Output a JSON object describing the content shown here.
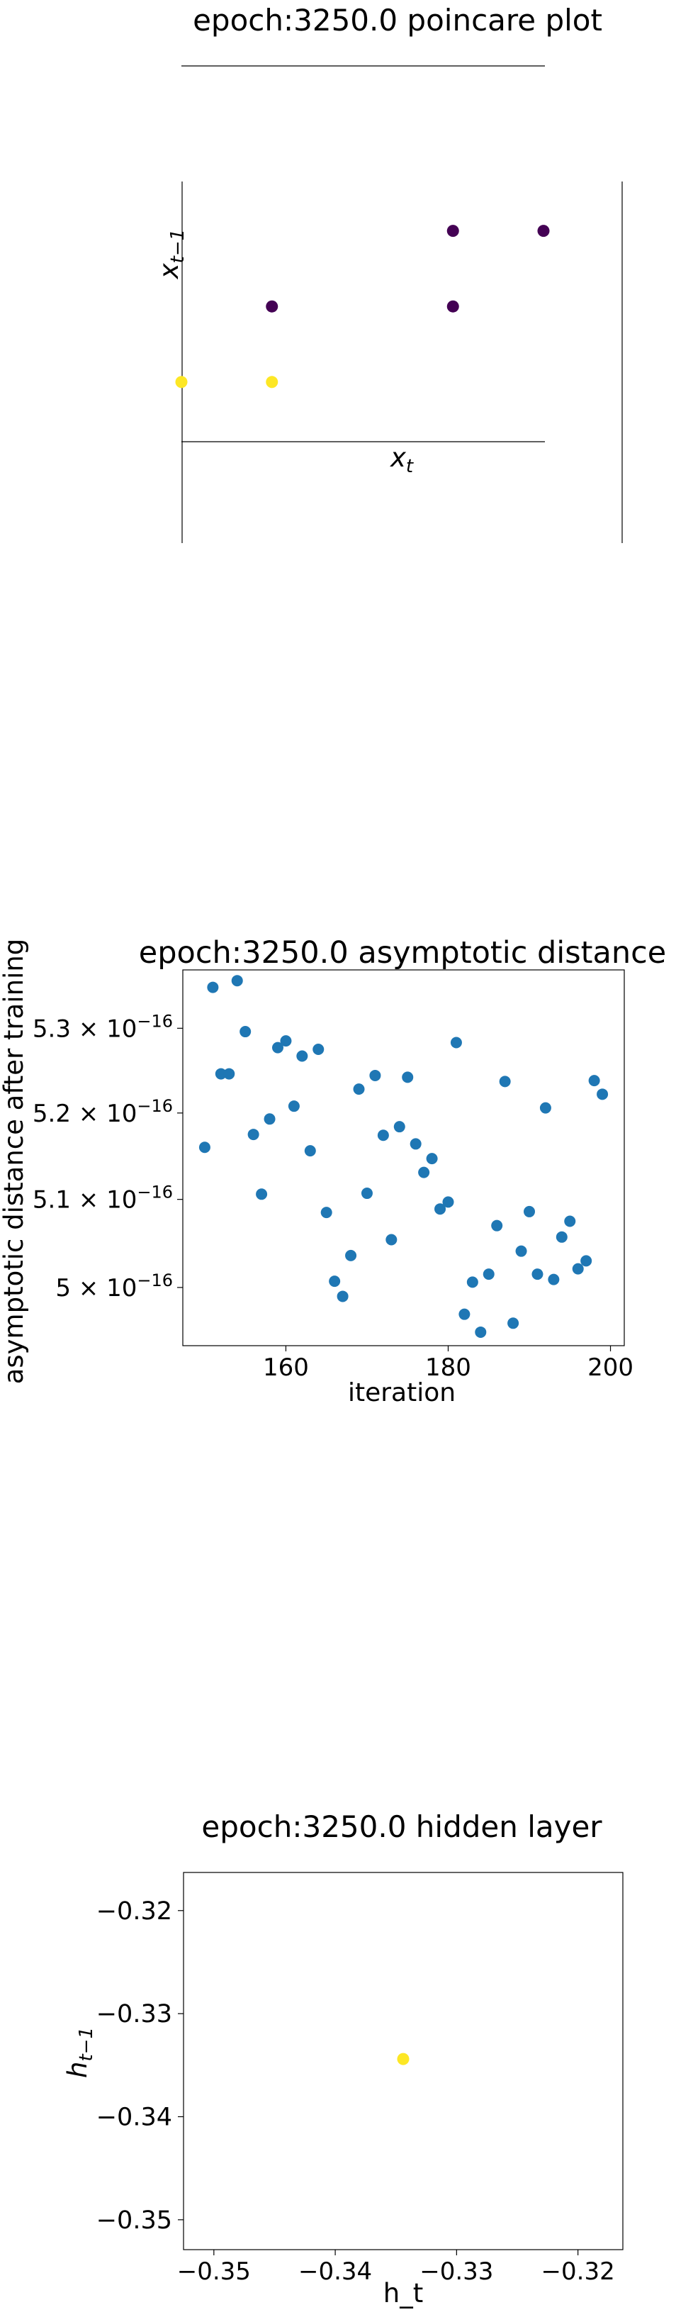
{
  "chart_data": [
    {
      "type": "scatter",
      "title": "epoch:3250.0 poincare plot",
      "xlabel": "x_t",
      "ylabel": "x_{t−1}",
      "spines": "centered",
      "grid": false,
      "points": [
        {
          "x": 0.5,
          "y": 0.5,
          "color": "#440154"
        },
        {
          "x": 1.0,
          "y": 0.5,
          "color": "#440154"
        },
        {
          "x": -0.5,
          "y": 0.0,
          "color": "#440154"
        },
        {
          "x": 0.5,
          "y": 0.0,
          "color": "#440154"
        },
        {
          "x": -1.0,
          "y": -0.5,
          "color": "#fde725"
        },
        {
          "x": -0.5,
          "y": -0.5,
          "color": "#fde725"
        }
      ],
      "xlim": [
        -1.0,
        1.0
      ],
      "ylim": [
        -1.5,
        1.0
      ]
    },
    {
      "type": "scatter",
      "title": "epoch:3250.0 asymptotic distance",
      "xlabel": "iteration",
      "ylabel": "asymptotic distance after training",
      "grid": false,
      "log_y": true,
      "xlim": [
        147.3,
        201.7
      ],
      "ylim": [
        4.935e-16,
        5.37e-16
      ],
      "xticks": [
        160,
        180,
        200
      ],
      "xtick_labels": [
        "160",
        "180",
        "200"
      ],
      "yticks": [
        5e-16,
        5.1e-16,
        5.2e-16,
        5.3e-16
      ],
      "ytick_labels": [
        {
          "mant": "5",
          "exp": "−16"
        },
        {
          "mant": "5.1",
          "exp": "−16"
        },
        {
          "mant": "5.2",
          "exp": "−16"
        },
        {
          "mant": "5.3",
          "exp": "−16"
        }
      ],
      "color": "#1f77b4",
      "x": [
        150,
        151,
        152,
        153,
        154,
        155,
        156,
        157,
        158,
        159,
        160,
        161,
        162,
        163,
        164,
        165,
        166,
        167,
        168,
        169,
        170,
        171,
        172,
        173,
        174,
        175,
        176,
        177,
        178,
        179,
        180,
        181,
        182,
        183,
        184,
        185,
        186,
        187,
        188,
        189,
        190,
        191,
        192,
        193,
        194,
        195,
        196,
        197,
        198,
        199
      ],
      "y": [
        5.16e-16,
        5.349e-16,
        5.246e-16,
        5.246e-16,
        5.357e-16,
        5.296e-16,
        5.175e-16,
        5.106e-16,
        5.193e-16,
        5.277e-16,
        5.285e-16,
        5.208e-16,
        5.267e-16,
        5.156e-16,
        5.275e-16,
        5.085e-16,
        5.007e-16,
        4.99e-16,
        5.036e-16,
        5.228e-16,
        5.107e-16,
        5.244e-16,
        5.174e-16,
        5.054e-16,
        5.184e-16,
        5.242e-16,
        5.164e-16,
        5.131e-16,
        5.147e-16,
        5.089e-16,
        5.097e-16,
        5.283e-16,
        4.97e-16,
        5.006e-16,
        4.95e-16,
        5.015e-16,
        5.07e-16,
        5.237e-16,
        4.96e-16,
        5.041e-16,
        5.086e-16,
        5.015e-16,
        5.206e-16,
        5.009e-16,
        5.057e-16,
        5.075e-16,
        5.021e-16,
        5.03e-16,
        5.238e-16,
        5.222e-16
      ]
    },
    {
      "type": "scatter",
      "title": "epoch:3250.0 hidden layer",
      "xlabel": "h_t",
      "ylabel": "h_{t−1}",
      "grid": false,
      "xlim": [
        -0.3525,
        -0.3163
      ],
      "ylim": [
        -0.3529,
        -0.3163
      ],
      "xticks": [
        -0.35,
        -0.34,
        -0.33,
        -0.32
      ],
      "xtick_labels": [
        "−0.35",
        "−0.34",
        "−0.33",
        "−0.32"
      ],
      "yticks": [
        -0.35,
        -0.34,
        -0.33,
        -0.32
      ],
      "ytick_labels": [
        "−0.35",
        "−0.34",
        "−0.33",
        "−0.32"
      ],
      "points": [
        {
          "x": -0.3344,
          "y": -0.3344,
          "color": "#fde725"
        }
      ]
    }
  ]
}
